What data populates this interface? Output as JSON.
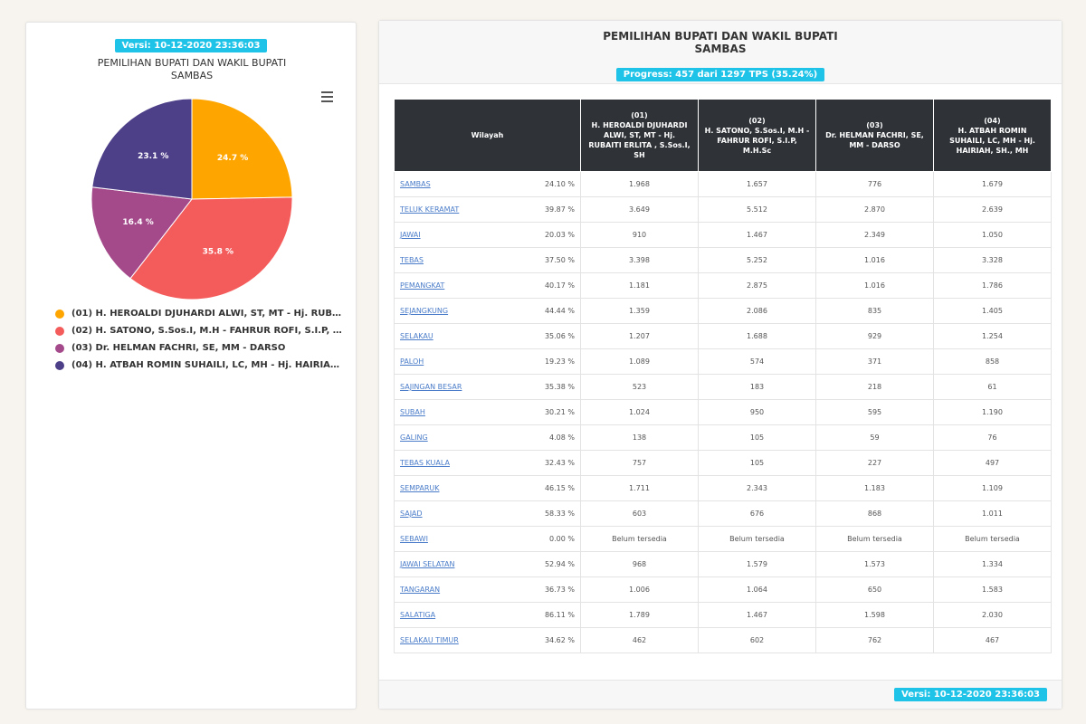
{
  "left": {
    "update_badge": "Versi: 10-12-2020 23:36:03",
    "title_line1": "PEMILIHAN BUPATI DAN WAKIL BUPATI",
    "title_line2": "SAMBAS",
    "menu_icon": "hamburger-menu-icon"
  },
  "right": {
    "title_line1": "PEMILIHAN BUPATI DAN WAKIL BUPATI",
    "title_line2": "SAMBAS",
    "progress_badge": "Progress: 457 dari 1297 TPS (35.24%)",
    "footer_badge": "Versi: 10-12-2020 23:36:03"
  },
  "table": {
    "headers": [
      "Wilayah",
      "(01)\nH. HEROALDI DJUHARDI ALWI, ST, MT - Hj. RUBAITI ERLITA , S.Sos.I, SH",
      "(02)\nH. SATONO, S.Sos.I, M.H - FAHRUR ROFI, S.I.P, M.H.Sc",
      "(03)\nDr. HELMAN FACHRI, SE, MM - DARSO",
      "(04)\nH. ATBAH ROMIN SUHAILI, LC, MH - Hj. HAIRIAH, SH., MH"
    ],
    "rows": [
      {
        "wilayah": "SAMBAS",
        "pct": "24.10 %",
        "c1": "1.968",
        "c2": "1.657",
        "c3": "776",
        "c4": "1.679"
      },
      {
        "wilayah": "TELUK KERAMAT",
        "pct": "39.87 %",
        "c1": "3.649",
        "c2": "5.512",
        "c3": "2.870",
        "c4": "2.639"
      },
      {
        "wilayah": "JAWAI",
        "pct": "20.03 %",
        "c1": "910",
        "c2": "1.467",
        "c3": "2.349",
        "c4": "1.050"
      },
      {
        "wilayah": "TEBAS",
        "pct": "37.50 %",
        "c1": "3.398",
        "c2": "5.252",
        "c3": "1.016",
        "c4": "3.328"
      },
      {
        "wilayah": "PEMANGKAT",
        "pct": "40.17 %",
        "c1": "1.181",
        "c2": "2.875",
        "c3": "1.016",
        "c4": "1.786"
      },
      {
        "wilayah": "SEJANGKUNG",
        "pct": "44.44 %",
        "c1": "1.359",
        "c2": "2.086",
        "c3": "835",
        "c4": "1.405"
      },
      {
        "wilayah": "SELAKAU",
        "pct": "35.06 %",
        "c1": "1.207",
        "c2": "1.688",
        "c3": "929",
        "c4": "1.254"
      },
      {
        "wilayah": "PALOH",
        "pct": "19.23 %",
        "c1": "1.089",
        "c2": "574",
        "c3": "371",
        "c4": "858"
      },
      {
        "wilayah": "SAJINGAN BESAR",
        "pct": "35.38 %",
        "c1": "523",
        "c2": "183",
        "c3": "218",
        "c4": "61"
      },
      {
        "wilayah": "SUBAH",
        "pct": "30.21 %",
        "c1": "1.024",
        "c2": "950",
        "c3": "595",
        "c4": "1.190"
      },
      {
        "wilayah": "GALING",
        "pct": "4.08 %",
        "c1": "138",
        "c2": "105",
        "c3": "59",
        "c4": "76"
      },
      {
        "wilayah": "TEBAS KUALA",
        "pct": "32.43 %",
        "c1": "757",
        "c2": "105",
        "c3": "227",
        "c4": "497"
      },
      {
        "wilayah": "SEMPARUK",
        "pct": "46.15 %",
        "c1": "1.711",
        "c2": "2.343",
        "c3": "1.183",
        "c4": "1.109"
      },
      {
        "wilayah": "SAJAD",
        "pct": "58.33 %",
        "c1": "603",
        "c2": "676",
        "c3": "868",
        "c4": "1.011"
      },
      {
        "wilayah": "SEBAWI",
        "pct": "0.00 %",
        "c1": "Belum tersedia",
        "c2": "Belum tersedia",
        "c3": "Belum tersedia",
        "c4": "Belum tersedia"
      },
      {
        "wilayah": "JAWAI SELATAN",
        "pct": "52.94 %",
        "c1": "968",
        "c2": "1.579",
        "c3": "1.573",
        "c4": "1.334"
      },
      {
        "wilayah": "TANGARAN",
        "pct": "36.73 %",
        "c1": "1.006",
        "c2": "1.064",
        "c3": "650",
        "c4": "1.583"
      },
      {
        "wilayah": "SALATIGA",
        "pct": "86.11 %",
        "c1": "1.789",
        "c2": "1.467",
        "c3": "1.598",
        "c4": "2.030"
      },
      {
        "wilayah": "SELAKAU TIMUR",
        "pct": "34.62 %",
        "c1": "462",
        "c2": "602",
        "c3": "762",
        "c4": "467"
      }
    ]
  },
  "chart_data": {
    "type": "pie",
    "title": "PEMILIHAN BUPATI DAN WAKIL BUPATI SAMBAS",
    "legend_position": "bottom",
    "series": [
      {
        "name": "(01) H. HEROALDI DJUHARDI ALWI, ST, MT - Hj. RUBAITI ERLITA , S.Sos.I, SH",
        "value": 24.7,
        "label": "24.7 %",
        "color": "#ffa500"
      },
      {
        "name": "(02) H. SATONO, S.Sos.I, M.H - FAHRUR ROFI, S.I.P, M.H.Sc",
        "value": 35.8,
        "label": "35.8 %",
        "color": "#f45b5b"
      },
      {
        "name": "(03) Dr. HELMAN FACHRI, SE, MM - DARSO",
        "value": 16.4,
        "label": "16.4 %",
        "color": "#a44a8b"
      },
      {
        "name": "(04) H. ATBAH ROMIN SUHAILI, LC, MH - Hj. HAIRIAH, SH., MH",
        "value": 23.1,
        "label": "23.1 %",
        "color": "#4e3f89"
      }
    ]
  }
}
